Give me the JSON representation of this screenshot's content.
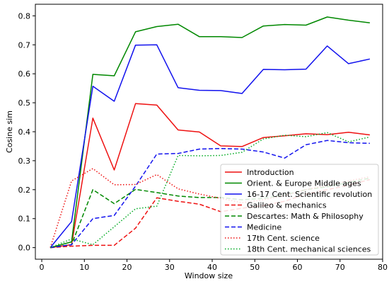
{
  "chart_data": {
    "type": "line",
    "title": "",
    "xlabel": "Window size",
    "ylabel": "Cosine sim",
    "xlim": [
      -1.5,
      80
    ],
    "ylim": [
      -0.04,
      0.84
    ],
    "xticks": [
      0,
      10,
      20,
      30,
      40,
      50,
      60,
      70,
      80
    ],
    "yticks": [
      0.0,
      0.1,
      0.2,
      0.3,
      0.4,
      0.5,
      0.6,
      0.7,
      0.8
    ],
    "ytick_labels": [
      "0.0",
      "0.1",
      "0.2",
      "0.3",
      "0.4",
      "0.5",
      "0.6",
      "0.7",
      "0.8"
    ],
    "grid": false,
    "legend_position": "lower-right",
    "x": [
      2,
      7,
      12,
      17,
      22,
      27,
      32,
      37,
      42,
      47,
      52,
      57,
      62,
      67,
      72,
      77
    ],
    "series": [
      {
        "name": "Introduction",
        "color": "#ee1111",
        "style": "solid",
        "values": [
          0.0,
          0.01,
          0.447,
          0.268,
          0.497,
          0.492,
          0.406,
          0.399,
          0.351,
          0.349,
          0.38,
          0.386,
          0.393,
          0.39,
          0.398,
          0.389
        ]
      },
      {
        "name": "Orient. & Europe Middle ages",
        "color": "#008800",
        "style": "solid",
        "values": [
          0.0,
          0.02,
          0.598,
          0.593,
          0.745,
          0.763,
          0.771,
          0.728,
          0.728,
          0.725,
          0.765,
          0.77,
          0.768,
          0.796,
          0.785,
          0.776
        ]
      },
      {
        "name": "16-17 Cent. Scientific revolution",
        "color": "#1111ee",
        "style": "solid",
        "values": [
          0.0,
          0.09,
          0.557,
          0.505,
          0.699,
          0.7,
          0.552,
          0.543,
          0.542,
          0.532,
          0.615,
          0.614,
          0.616,
          0.696,
          0.635,
          0.651
        ]
      },
      {
        "name": "Galileo & mechanics",
        "color": "#ee1111",
        "style": "dashed",
        "values": [
          0.0,
          0.005,
          0.008,
          0.008,
          0.067,
          0.172,
          0.16,
          0.15,
          0.124,
          0.136,
          0.145,
          0.16,
          0.185,
          0.2,
          0.215,
          0.235
        ]
      },
      {
        "name": "Descartes: Math & Philosophy",
        "color": "#008800",
        "style": "dashed",
        "values": [
          0.0,
          0.01,
          0.2,
          0.152,
          0.201,
          0.19,
          0.178,
          0.173,
          0.173,
          0.165,
          0.17,
          0.182,
          0.2,
          0.21,
          0.225,
          0.24
        ]
      },
      {
        "name": "Medicine",
        "color": "#1111ee",
        "style": "dashed",
        "values": [
          0.0,
          0.01,
          0.1,
          0.111,
          0.212,
          0.323,
          0.325,
          0.34,
          0.342,
          0.34,
          0.33,
          0.309,
          0.355,
          0.37,
          0.362,
          0.36
        ]
      },
      {
        "name": "17th Cent. science",
        "color": "#ee1111",
        "style": "dotted",
        "values": [
          0.0,
          0.23,
          0.273,
          0.217,
          0.218,
          0.252,
          0.203,
          0.185,
          0.17,
          0.155,
          0.165,
          0.18,
          0.2,
          0.215,
          0.23,
          0.245
        ]
      },
      {
        "name": "18th Cent. mechanical sciences",
        "color": "#00aa22",
        "style": "dotted",
        "values": [
          0.0,
          0.03,
          0.01,
          0.072,
          0.134,
          0.143,
          0.318,
          0.317,
          0.318,
          0.329,
          0.375,
          0.388,
          0.383,
          0.397,
          0.365,
          0.382
        ]
      }
    ]
  }
}
